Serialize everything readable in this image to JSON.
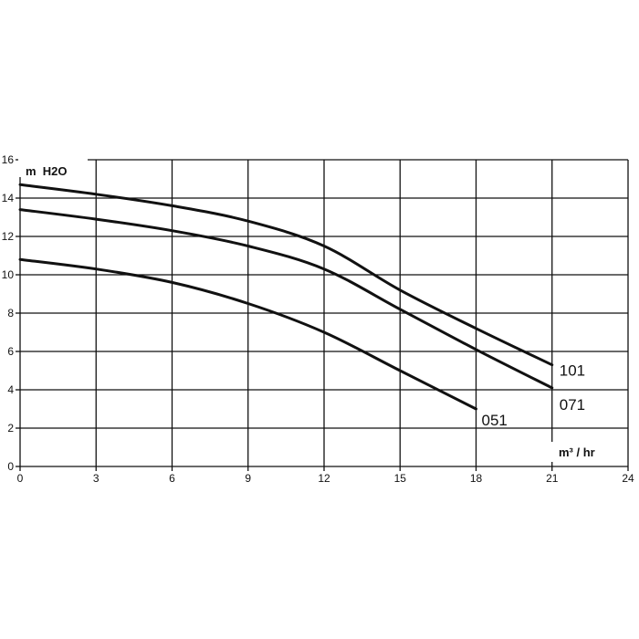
{
  "chart_data": {
    "type": "line",
    "ylabel": "m  H2O",
    "xlabel": "m³ / hr",
    "xlim": [
      0,
      24
    ],
    "ylim": [
      0,
      16
    ],
    "x_ticks": [
      "0",
      "3",
      "6",
      "9",
      "12",
      "15",
      "18",
      "21",
      "24"
    ],
    "y_ticks": [
      "0",
      "2",
      "4",
      "6",
      "8",
      "10",
      "12",
      "14",
      "16"
    ],
    "grid": true,
    "series": [
      {
        "name": "101",
        "x": [
          0,
          3,
          6,
          9,
          12,
          15,
          18,
          21
        ],
        "y": [
          14.7,
          14.2,
          13.6,
          12.8,
          11.5,
          9.2,
          7.2,
          5.3
        ]
      },
      {
        "name": "071",
        "x": [
          0,
          3,
          6,
          9,
          12,
          15,
          18,
          21
        ],
        "y": [
          13.4,
          12.9,
          12.3,
          11.5,
          10.3,
          8.2,
          6.1,
          4.1
        ]
      },
      {
        "name": "051",
        "x": [
          0,
          3,
          6,
          9,
          12,
          15,
          18
        ],
        "y": [
          10.8,
          10.3,
          9.6,
          8.5,
          7.0,
          5.0,
          3.0
        ]
      }
    ]
  }
}
